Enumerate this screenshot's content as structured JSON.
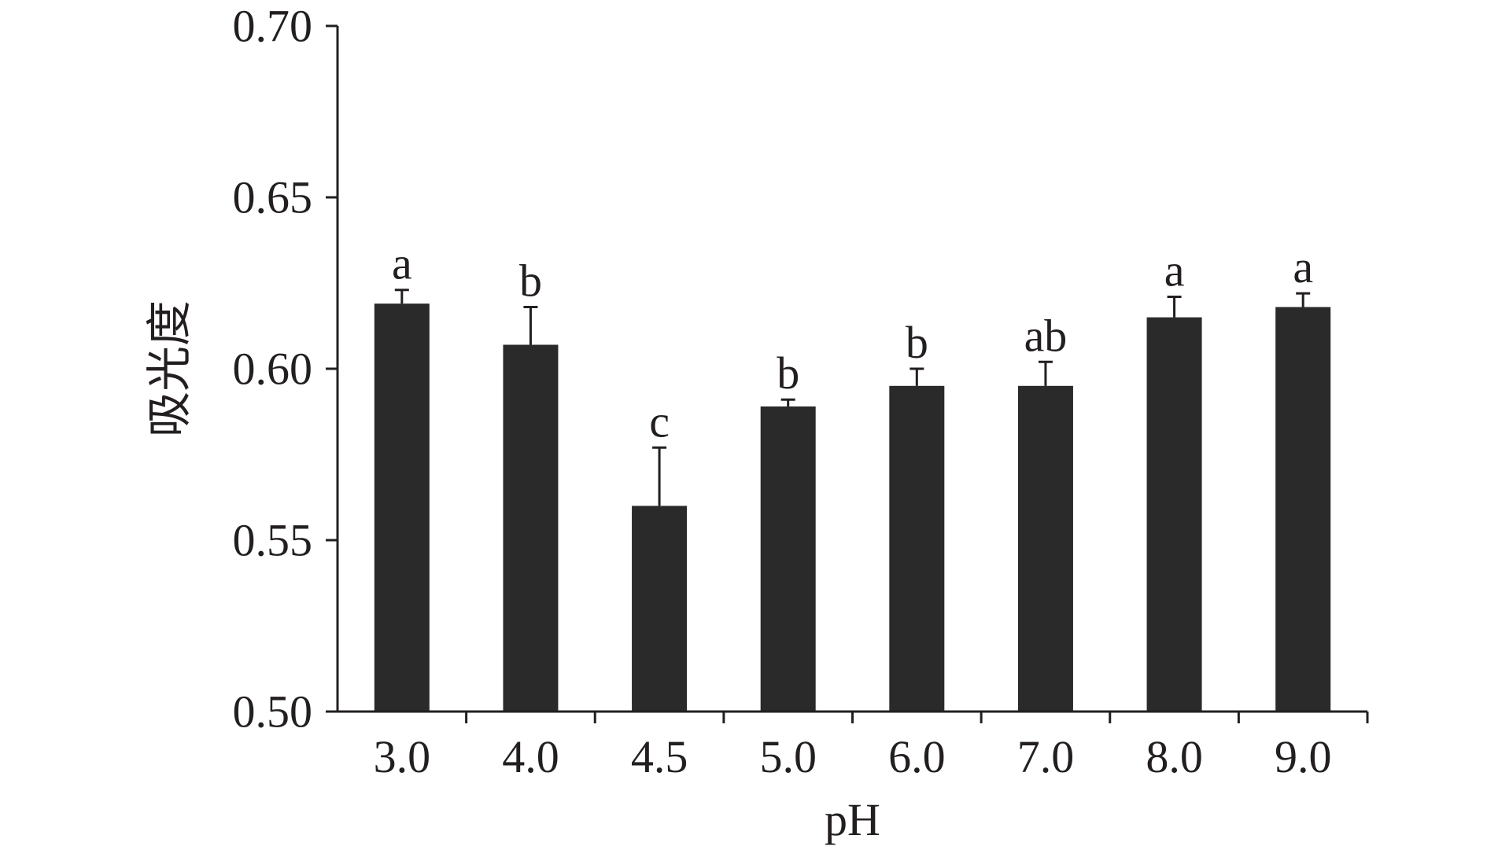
{
  "chart_data": {
    "type": "bar",
    "title": "",
    "xlabel": "pH",
    "ylabel": "吸光度",
    "categories": [
      "3.0",
      "4.0",
      "4.5",
      "5.0",
      "6.0",
      "7.0",
      "8.0",
      "9.0"
    ],
    "values": [
      0.619,
      0.607,
      0.56,
      0.589,
      0.595,
      0.595,
      0.615,
      0.618
    ],
    "error": [
      0.004,
      0.011,
      0.017,
      0.002,
      0.005,
      0.007,
      0.006,
      0.004
    ],
    "group_labels": [
      "a",
      "b",
      "c",
      "b",
      "b",
      "ab",
      "a",
      "a"
    ],
    "ylim": [
      0.5,
      0.7
    ],
    "yticks": [
      "0.50",
      "0.55",
      "0.60",
      "0.65",
      "0.70"
    ],
    "grid": false,
    "legend": "none",
    "colors": {
      "bar": "#2b2a2b",
      "axis": "#231f20",
      "text": "#231f20"
    }
  }
}
